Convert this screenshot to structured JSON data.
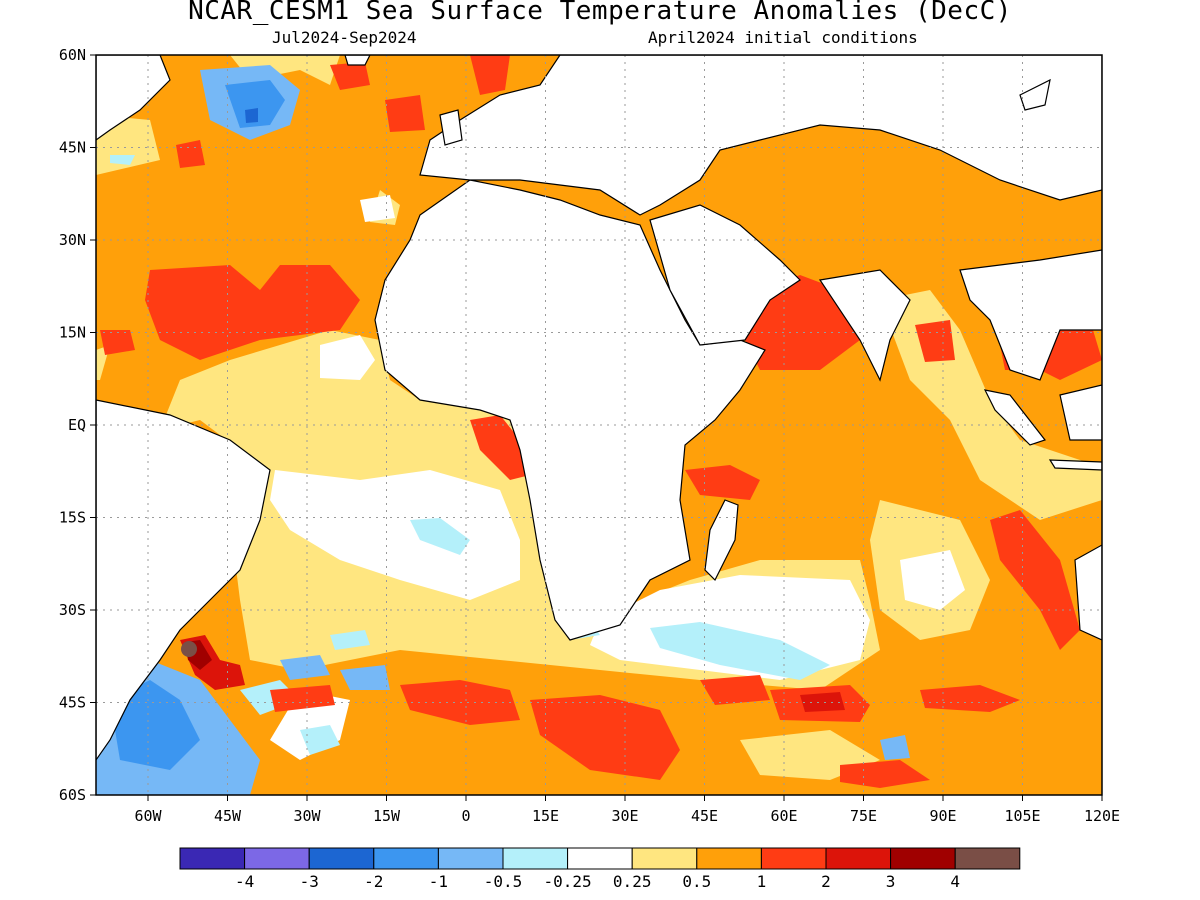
{
  "title": "NCAR_CESM1 Sea Surface Temperature Anomalies (DecC)",
  "period": "Jul2024-Sep2024",
  "initial_conditions": "April2024 initial conditions",
  "lat_labels": [
    "60N",
    "45N",
    "30N",
    "15N",
    "EQ",
    "15S",
    "30S",
    "45S",
    "60S"
  ],
  "lon_labels": [
    "60W",
    "45W",
    "30W",
    "15W",
    "0",
    "15E",
    "30E",
    "45E",
    "60E",
    "75E",
    "90E",
    "105E",
    "120E"
  ],
  "colorbar": {
    "colors": [
      "#3a28b4",
      "#7c68e6",
      "#1c66d2",
      "#3c96f0",
      "#76b8f6",
      "#b4f0fa",
      "#ffffff",
      "#ffe680",
      "#ffa00a",
      "#ff3c14",
      "#dc140a",
      "#a00000",
      "#7a4e46"
    ],
    "labels": [
      "-4",
      "-3",
      "-2",
      "-1",
      "-0.5",
      "-0.25",
      "0.25",
      "0.5",
      "1",
      "2",
      "3",
      "4"
    ]
  },
  "colors": {
    "land": "#ffffff",
    "coast": "#000000",
    "grid": "#9a9a9a"
  }
}
